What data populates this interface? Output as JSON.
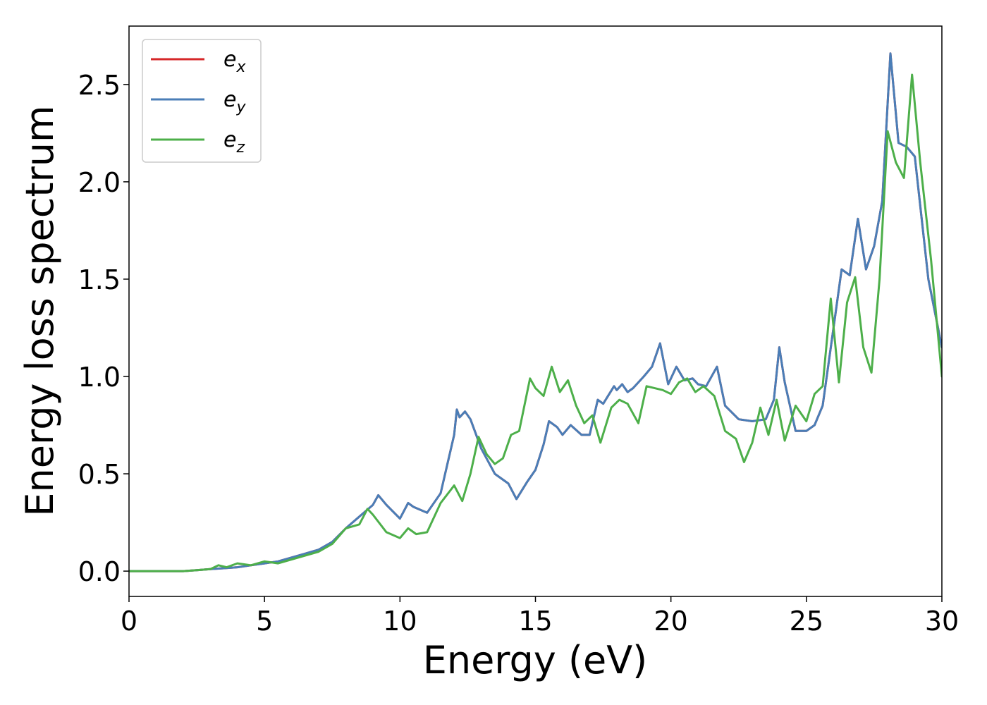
{
  "chart_data": {
    "type": "line",
    "title": "",
    "xlabel": "Energy (eV)",
    "ylabel": "Energy loss spectrum",
    "xlim": [
      0,
      30
    ],
    "ylim": [
      -0.13,
      2.8
    ],
    "xticks": [
      0,
      5,
      10,
      15,
      20,
      25,
      30
    ],
    "xtick_labels": [
      "0",
      "5",
      "10",
      "15",
      "20",
      "25",
      "30"
    ],
    "yticks": [
      0.0,
      0.5,
      1.0,
      1.5,
      2.0,
      2.5
    ],
    "ytick_labels": [
      "0.0",
      "0.5",
      "1.0",
      "1.5",
      "2.0",
      "2.5"
    ],
    "grid": false,
    "legend_position": "top-left",
    "series": [
      {
        "name": "e",
        "subscript": "x",
        "color": "#d62728",
        "x": [
          0,
          1,
          2,
          2.5,
          3,
          3.5,
          4,
          4.5,
          5,
          5.5,
          6,
          6.5,
          7,
          7.5,
          8,
          8.5,
          9,
          9.2,
          9.5,
          10,
          10.3,
          10.5,
          11,
          11.5,
          12,
          12.1,
          12.2,
          12.4,
          12.6,
          13,
          13.5,
          14,
          14.3,
          14.7,
          15,
          15.3,
          15.5,
          15.8,
          16,
          16.3,
          16.7,
          17,
          17.3,
          17.5,
          17.9,
          18,
          18.2,
          18.4,
          18.6,
          19,
          19.3,
          19.6,
          19.9,
          20.2,
          20.5,
          20.8,
          21,
          21.3,
          21.7,
          22,
          22.5,
          23,
          23.5,
          23.8,
          24,
          24.2,
          24.6,
          25,
          25.3,
          25.6,
          26,
          26.3,
          26.6,
          26.9,
          27.2,
          27.5,
          27.8,
          28.1,
          28.4,
          28.7,
          29,
          29.5,
          30
        ],
        "values": [
          0,
          0,
          0,
          0.005,
          0.01,
          0.015,
          0.02,
          0.03,
          0.04,
          0.05,
          0.07,
          0.09,
          0.11,
          0.15,
          0.22,
          0.28,
          0.34,
          0.39,
          0.34,
          0.27,
          0.35,
          0.33,
          0.3,
          0.4,
          0.7,
          0.83,
          0.79,
          0.82,
          0.78,
          0.63,
          0.5,
          0.45,
          0.37,
          0.46,
          0.52,
          0.65,
          0.77,
          0.74,
          0.7,
          0.75,
          0.7,
          0.7,
          0.88,
          0.86,
          0.95,
          0.93,
          0.96,
          0.92,
          0.94,
          1.0,
          1.05,
          1.17,
          0.96,
          1.05,
          0.98,
          0.99,
          0.96,
          0.95,
          1.05,
          0.85,
          0.78,
          0.77,
          0.78,
          0.88,
          1.15,
          0.97,
          0.72,
          0.72,
          0.75,
          0.85,
          1.25,
          1.55,
          1.52,
          1.81,
          1.55,
          1.67,
          1.9,
          2.66,
          2.2,
          2.18,
          2.13,
          1.5,
          1.15
        ]
      },
      {
        "name": "e",
        "subscript": "y",
        "color": "#4a7eb7",
        "x": [
          0,
          1,
          2,
          2.5,
          3,
          3.5,
          4,
          4.5,
          5,
          5.5,
          6,
          6.5,
          7,
          7.5,
          8,
          8.5,
          9,
          9.2,
          9.5,
          10,
          10.3,
          10.5,
          11,
          11.5,
          12,
          12.1,
          12.2,
          12.4,
          12.6,
          13,
          13.5,
          14,
          14.3,
          14.7,
          15,
          15.3,
          15.5,
          15.8,
          16,
          16.3,
          16.7,
          17,
          17.3,
          17.5,
          17.9,
          18,
          18.2,
          18.4,
          18.6,
          19,
          19.3,
          19.6,
          19.9,
          20.2,
          20.5,
          20.8,
          21,
          21.3,
          21.7,
          22,
          22.5,
          23,
          23.5,
          23.8,
          24,
          24.2,
          24.6,
          25,
          25.3,
          25.6,
          26,
          26.3,
          26.6,
          26.9,
          27.2,
          27.5,
          27.8,
          28.1,
          28.4,
          28.7,
          29,
          29.5,
          30
        ],
        "values": [
          0,
          0,
          0,
          0.005,
          0.01,
          0.015,
          0.02,
          0.03,
          0.04,
          0.05,
          0.07,
          0.09,
          0.11,
          0.15,
          0.22,
          0.28,
          0.34,
          0.39,
          0.34,
          0.27,
          0.35,
          0.33,
          0.3,
          0.4,
          0.7,
          0.83,
          0.79,
          0.82,
          0.78,
          0.63,
          0.5,
          0.45,
          0.37,
          0.46,
          0.52,
          0.65,
          0.77,
          0.74,
          0.7,
          0.75,
          0.7,
          0.7,
          0.88,
          0.86,
          0.95,
          0.93,
          0.96,
          0.92,
          0.94,
          1.0,
          1.05,
          1.17,
          0.96,
          1.05,
          0.98,
          0.99,
          0.96,
          0.95,
          1.05,
          0.85,
          0.78,
          0.77,
          0.78,
          0.88,
          1.15,
          0.97,
          0.72,
          0.72,
          0.75,
          0.85,
          1.25,
          1.55,
          1.52,
          1.81,
          1.55,
          1.67,
          1.9,
          2.66,
          2.2,
          2.18,
          2.13,
          1.5,
          1.15
        ]
      },
      {
        "name": "e",
        "subscript": "z",
        "color": "#4daf4a",
        "x": [
          0,
          1,
          2,
          2.5,
          3,
          3.3,
          3.6,
          4,
          4.5,
          5,
          5.5,
          6,
          6.5,
          7,
          7.5,
          8,
          8.5,
          8.8,
          9,
          9.5,
          10,
          10.3,
          10.6,
          11,
          11.5,
          12,
          12.3,
          12.6,
          12.9,
          13.2,
          13.5,
          13.8,
          14.1,
          14.4,
          14.8,
          15,
          15.3,
          15.6,
          15.9,
          16.2,
          16.5,
          16.8,
          17.1,
          17.4,
          17.8,
          18.1,
          18.4,
          18.8,
          19.1,
          19.4,
          19.7,
          20,
          20.3,
          20.6,
          20.9,
          21.2,
          21.6,
          22,
          22.4,
          22.7,
          23,
          23.3,
          23.6,
          23.9,
          24.2,
          24.6,
          25,
          25.3,
          25.6,
          25.9,
          26.2,
          26.5,
          26.8,
          27.1,
          27.4,
          27.7,
          28,
          28.3,
          28.6,
          28.9,
          29.2,
          29.6,
          30
        ],
        "values": [
          0,
          0,
          0,
          0.005,
          0.01,
          0.03,
          0.02,
          0.04,
          0.03,
          0.05,
          0.04,
          0.06,
          0.08,
          0.1,
          0.14,
          0.22,
          0.24,
          0.32,
          0.29,
          0.2,
          0.17,
          0.22,
          0.19,
          0.2,
          0.35,
          0.44,
          0.36,
          0.5,
          0.69,
          0.6,
          0.55,
          0.58,
          0.7,
          0.72,
          0.99,
          0.94,
          0.9,
          1.05,
          0.92,
          0.98,
          0.85,
          0.76,
          0.8,
          0.66,
          0.84,
          0.88,
          0.86,
          0.76,
          0.95,
          0.94,
          0.93,
          0.91,
          0.97,
          0.99,
          0.92,
          0.95,
          0.9,
          0.72,
          0.68,
          0.56,
          0.66,
          0.84,
          0.7,
          0.88,
          0.67,
          0.85,
          0.77,
          0.91,
          0.95,
          1.4,
          0.97,
          1.38,
          1.51,
          1.15,
          1.02,
          1.5,
          2.26,
          2.1,
          2.02,
          2.55,
          2.1,
          1.6,
          1.0
        ]
      }
    ]
  }
}
